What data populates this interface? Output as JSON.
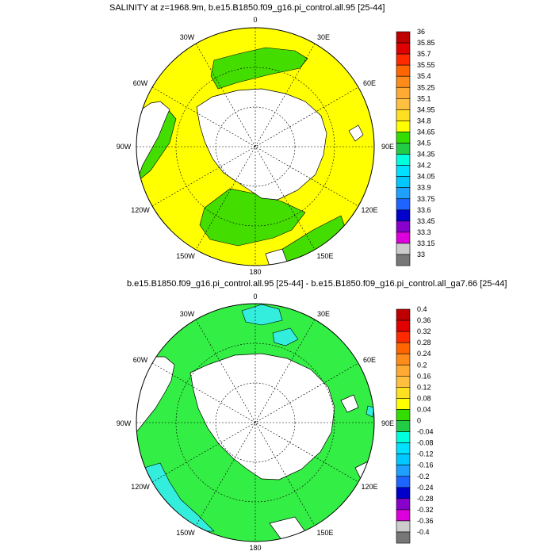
{
  "panels": [
    {
      "title": "SALINITY at z=1968.9m, b.e15.B1850.f09_g16.pi_control.all.95 [25-44]",
      "lon_labels": [
        "0",
        "30E",
        "60E",
        "90E",
        "120E",
        "150E",
        "180",
        "150W",
        "120W",
        "90W",
        "60W",
        "30W"
      ],
      "colorbar": {
        "labels": [
          "36",
          "35.85",
          "35.7",
          "35.55",
          "35.4",
          "35.25",
          "35.1",
          "34.95",
          "34.8",
          "34.65",
          "34.5",
          "34.35",
          "34.2",
          "34.05",
          "33.9",
          "33.75",
          "33.6",
          "33.45",
          "33.3",
          "33.15",
          "33"
        ],
        "colors": [
          "#c00000",
          "#e00000",
          "#ff2a00",
          "#ff6600",
          "#ff8c1a",
          "#ffaa33",
          "#ffc040",
          "#ffe020",
          "#ffff00",
          "#33dd00",
          "#22cc44",
          "#00ffdd",
          "#00e0ff",
          "#00c8ff",
          "#1ea0ff",
          "#1e64ff",
          "#0000cc",
          "#8800cc",
          "#dd00dd",
          "#cccccc",
          "#777777"
        ]
      },
      "fill_colors": {
        "dominant": "#ffff00",
        "secondary": "#44dd00"
      }
    },
    {
      "title": "b.e15.B1850.f09_g16.pi_control.all.95 [25-44] - b.e15.B1850.f09_g16.pi_control.all_ga7.66 [25-44]",
      "lon_labels": [
        "0",
        "30E",
        "60E",
        "90E",
        "120E",
        "150E",
        "180",
        "150W",
        "120W",
        "90W",
        "60W",
        "30W"
      ],
      "colorbar": {
        "labels": [
          "0.4",
          "0.36",
          "0.32",
          "0.28",
          "0.24",
          "0.2",
          "0.16",
          "0.12",
          "0.08",
          "0.04",
          "0",
          "-0.04",
          "-0.08",
          "-0.12",
          "-0.16",
          "-0.2",
          "-0.24",
          "-0.28",
          "-0.32",
          "-0.36",
          "-0.4"
        ],
        "colors": [
          "#c00000",
          "#e00000",
          "#ff2a00",
          "#ff6600",
          "#ff8c1a",
          "#ffaa33",
          "#ffc040",
          "#ffe020",
          "#ffff00",
          "#33dd00",
          "#22cc44",
          "#00ffdd",
          "#00e0ff",
          "#00c8ff",
          "#1ea0ff",
          "#1e64ff",
          "#0000cc",
          "#8800cc",
          "#dd00dd",
          "#cccccc",
          "#777777"
        ]
      },
      "fill_colors": {
        "dominant": "#33ee44",
        "secondary": "#33eedd"
      }
    }
  ],
  "chart_data": [
    {
      "type": "heatmap",
      "projection": "south-polar-stereographic",
      "title": "SALINITY at z=1968.9m, b.e15.B1850.f09_g16.pi_control.all.95 [25-44]",
      "variable": "SALINITY",
      "colorbar_levels": [
        36,
        35.85,
        35.7,
        35.55,
        35.4,
        35.25,
        35.1,
        34.95,
        34.8,
        34.65,
        34.5,
        34.35,
        34.2,
        34.05,
        33.9,
        33.75,
        33.6,
        33.45,
        33.3,
        33.15,
        33
      ],
      "dominant_range": [
        34.8,
        34.95
      ],
      "secondary_range": [
        34.65,
        34.8
      ],
      "lon_labels": [
        "0",
        "30E",
        "60E",
        "90E",
        "120E",
        "150E",
        "180",
        "150W",
        "120W",
        "90W",
        "60W",
        "30W"
      ],
      "grid": true,
      "legend": "right"
    },
    {
      "type": "heatmap",
      "projection": "south-polar-stereographic",
      "title": "b.e15.B1850.f09_g16.pi_control.all.95 [25-44] - b.e15.B1850.f09_g16.pi_control.all_ga7.66 [25-44]",
      "colorbar_levels": [
        0.4,
        0.36,
        0.32,
        0.28,
        0.24,
        0.2,
        0.16,
        0.12,
        0.08,
        0.04,
        0,
        -0.04,
        -0.08,
        -0.12,
        -0.16,
        -0.2,
        -0.24,
        -0.28,
        -0.32,
        -0.36,
        -0.4
      ],
      "dominant_range": [
        0.0,
        0.04
      ],
      "secondary_range": [
        -0.04,
        0.0
      ],
      "lon_labels": [
        "0",
        "30E",
        "60E",
        "90E",
        "120E",
        "150E",
        "180",
        "150W",
        "120W",
        "90W",
        "60W",
        "30W"
      ],
      "grid": true,
      "legend": "right"
    }
  ]
}
